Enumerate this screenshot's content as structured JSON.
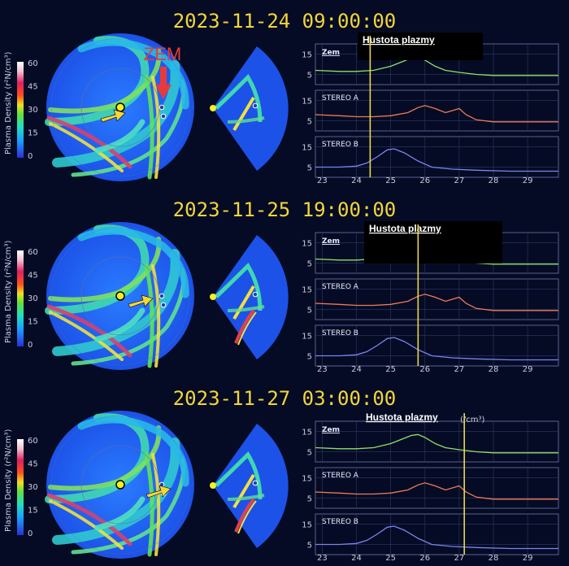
{
  "colors": {
    "background": "#050b24",
    "timestamp": "#f2d63a",
    "series_zem": "#8fe06a",
    "series_stereo_a": "#ef7a5a",
    "series_stereo_b": "#7a84f0",
    "marker": "#e8d84a",
    "arrow": "#f2d63a",
    "zem_label": "#e83a3a"
  },
  "annotation": {
    "zem_big": "ZEM"
  },
  "colorbar": {
    "label": "Plasma Density (r²N/cm³)",
    "ticks": [
      "60",
      "45",
      "30",
      "15",
      "0"
    ]
  },
  "panels": [
    {
      "timestamp": "2023-11-24  09:00:00",
      "header": "Hustota plazmy",
      "unit": "",
      "earth_label": "Zem",
      "marker_day": 24.4
    },
    {
      "timestamp": "2023-11-25  19:00:00",
      "header": "Hustota plazmy",
      "unit": "",
      "earth_label": "Zem",
      "marker_day": 25.8
    },
    {
      "timestamp": "2023-11-27  03:00:00",
      "header": "Hustota plazmy",
      "unit": "(/cm³)",
      "earth_label": "Zem",
      "marker_day": 27.15
    }
  ],
  "chart_data": {
    "type": "line",
    "x_ticks": [
      "23",
      "24",
      "25",
      "26",
      "27",
      "28",
      "29"
    ],
    "xlim": [
      22.8,
      29.9
    ],
    "y_ticks": [
      "15",
      "5"
    ],
    "ylim": [
      0,
      20
    ],
    "series": [
      {
        "name": "Zem",
        "x": [
          22.8,
          23.5,
          24.0,
          24.5,
          25.0,
          25.3,
          25.6,
          25.8,
          26.0,
          26.3,
          26.6,
          27.0,
          27.5,
          28.0,
          29.0,
          29.9
        ],
        "values": [
          7,
          6.5,
          6.5,
          7,
          9,
          11,
          13,
          13.5,
          12,
          9,
          7,
          6,
          5,
          4.5,
          4.5,
          4.5
        ]
      },
      {
        "name": "STEREO A",
        "x": [
          22.8,
          23.5,
          24.0,
          24.5,
          25.0,
          25.5,
          25.8,
          26.0,
          26.3,
          26.6,
          26.8,
          27.0,
          27.2,
          27.5,
          28.0,
          29.0,
          29.9
        ],
        "values": [
          8,
          7.5,
          7,
          7,
          7.5,
          9,
          11.5,
          12.5,
          11,
          9,
          10,
          11,
          8,
          5.5,
          4.5,
          4.5,
          4.5
        ]
      },
      {
        "name": "STEREO B",
        "x": [
          22.8,
          23.5,
          24.0,
          24.3,
          24.6,
          24.9,
          25.1,
          25.4,
          25.8,
          26.2,
          26.8,
          27.5,
          28.5,
          29.9
        ],
        "values": [
          5,
          5,
          5.5,
          7,
          10,
          13.5,
          14,
          12,
          8,
          5,
          4,
          3.5,
          3,
          3
        ]
      }
    ]
  }
}
